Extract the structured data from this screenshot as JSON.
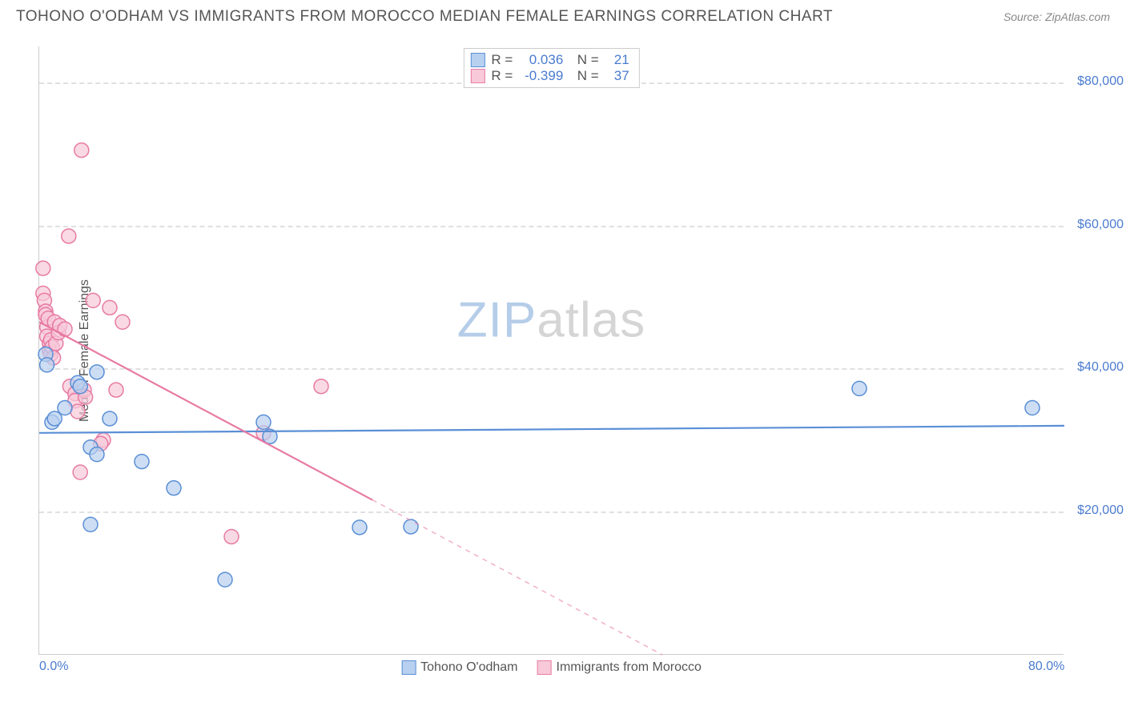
{
  "header": {
    "title": "TOHONO O'ODHAM VS IMMIGRANTS FROM MOROCCO MEDIAN FEMALE EARNINGS CORRELATION CHART",
    "source": "Source: ZipAtlas.com"
  },
  "watermark": {
    "part1": "ZIP",
    "part2": "atlas"
  },
  "chart": {
    "type": "scatter",
    "y_axis_title": "Median Female Earnings",
    "xlim": [
      0,
      80
    ],
    "ylim": [
      0,
      85000
    ],
    "x_ticks": [
      {
        "value": 0,
        "label": "0.0%"
      },
      {
        "value": 80,
        "label": "80.0%"
      }
    ],
    "y_ticks": [
      {
        "value": 20000,
        "label": "$20,000"
      },
      {
        "value": 40000,
        "label": "$40,000"
      },
      {
        "value": 60000,
        "label": "$60,000"
      },
      {
        "value": 80000,
        "label": "$80,000"
      }
    ],
    "grid_color": "#e0e0e0",
    "axis_color": "#cccccc",
    "tick_label_color": "#4a7bd0",
    "tick_fontsize": 16,
    "background_color": "#ffffff",
    "marker_radius": 9,
    "marker_stroke_width": 1.5,
    "trend_line_width": 2.2,
    "series": [
      {
        "name": "Tohono O'odham",
        "fill_color": "#b8d0f0",
        "stroke_color": "#5a8fd6",
        "r_value": "0.036",
        "n_value": "21",
        "points": [
          [
            0.5,
            42000
          ],
          [
            0.6,
            40500
          ],
          [
            1.0,
            32500
          ],
          [
            1.2,
            33000
          ],
          [
            2.0,
            34500
          ],
          [
            3.0,
            38000
          ],
          [
            3.2,
            37500
          ],
          [
            4.5,
            39500
          ],
          [
            4.0,
            29000
          ],
          [
            4.5,
            28000
          ],
          [
            5.5,
            33000
          ],
          [
            4.0,
            18200
          ],
          [
            8.0,
            27000
          ],
          [
            10.5,
            23300
          ],
          [
            14.5,
            10500
          ],
          [
            17.5,
            32500
          ],
          [
            18.0,
            30500
          ],
          [
            25.0,
            17800
          ],
          [
            29.0,
            17900
          ],
          [
            64.0,
            37200
          ],
          [
            77.5,
            34500
          ]
        ],
        "trend": {
          "y_at_xmin": 31000,
          "y_at_xmax": 32000
        }
      },
      {
        "name": "Immigrants from Morocco",
        "fill_color": "#f7c9d9",
        "stroke_color": "#e87ba3",
        "r_value": "-0.399",
        "n_value": "37",
        "points": [
          [
            0.3,
            54000
          ],
          [
            0.3,
            50500
          ],
          [
            0.4,
            49500
          ],
          [
            0.5,
            48000
          ],
          [
            0.5,
            47500
          ],
          [
            0.6,
            45800
          ],
          [
            0.6,
            44500
          ],
          [
            0.7,
            47000
          ],
          [
            0.8,
            43500
          ],
          [
            0.8,
            42500
          ],
          [
            0.9,
            44000
          ],
          [
            0.9,
            42000
          ],
          [
            1.0,
            43000
          ],
          [
            1.1,
            41500
          ],
          [
            1.2,
            46500
          ],
          [
            1.3,
            43500
          ],
          [
            1.5,
            45000
          ],
          [
            1.6,
            46000
          ],
          [
            2.3,
            58500
          ],
          [
            3.3,
            70500
          ],
          [
            2.0,
            45500
          ],
          [
            2.4,
            37500
          ],
          [
            2.8,
            36500
          ],
          [
            2.8,
            35500
          ],
          [
            3.5,
            37000
          ],
          [
            3.6,
            36000
          ],
          [
            4.2,
            49500
          ],
          [
            5.5,
            48500
          ],
          [
            5.0,
            30000
          ],
          [
            4.8,
            29500
          ],
          [
            6.5,
            46500
          ],
          [
            3.2,
            25500
          ],
          [
            3.0,
            34000
          ],
          [
            6.0,
            37000
          ],
          [
            15.0,
            16500
          ],
          [
            22.0,
            37500
          ],
          [
            17.5,
            31000
          ]
        ],
        "trend": {
          "y_at_xmin": 46500,
          "y_at_xmax": -30000,
          "solid_until_x": 26,
          "dashed_after": true
        }
      }
    ]
  }
}
